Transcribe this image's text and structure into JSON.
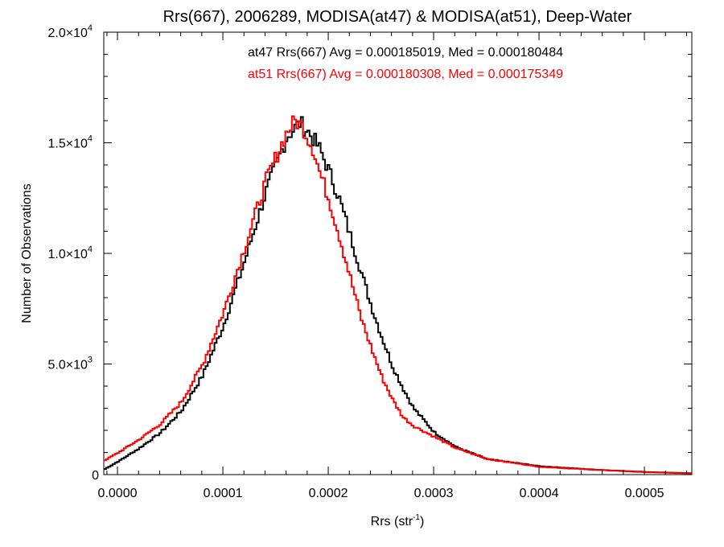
{
  "chart_data": {
    "type": "line",
    "title": "Rrs(667), 2006289, MODISA(at47) & MODISA(at51), Deep-Water",
    "xlabel": "Rrs (str",
    "xlabel_sup": "-1",
    "xlabel_end": ")",
    "ylabel": "Number of Observations",
    "xlim": [
      -1.3e-05,
      0.000545
    ],
    "ylim": [
      0,
      20000
    ],
    "x_ticks": [
      {
        "value": 0.0,
        "label": "0.0000"
      },
      {
        "value": 0.0001,
        "label": "0.0001"
      },
      {
        "value": 0.0002,
        "label": "0.0002"
      },
      {
        "value": 0.0003,
        "label": "0.0003"
      },
      {
        "value": 0.0004,
        "label": "0.0004"
      },
      {
        "value": 0.0005,
        "label": "0.0005"
      }
    ],
    "y_ticks": [
      {
        "value": 0,
        "label": "0",
        "sup": ""
      },
      {
        "value": 5000,
        "label": "5.0×10",
        "sup": "3"
      },
      {
        "value": 10000,
        "label": "1.0×10",
        "sup": "4"
      },
      {
        "value": 15000,
        "label": "1.5×10",
        "sup": "4"
      },
      {
        "value": 20000,
        "label": "2.0×10",
        "sup": "4"
      }
    ],
    "grid": false,
    "series": [
      {
        "name": "at47",
        "color": "#000000",
        "stat_label": "at47 Rrs(667) Avg = 0.000185019, Med = 0.000180484",
        "x": [
          -1.3e-05,
          0.0,
          2e-05,
          4e-05,
          6e-05,
          8e-05,
          0.0001,
          0.00012,
          0.00014,
          0.00016,
          0.000172,
          0.00018,
          0.00019,
          0.0002,
          0.00021,
          0.00022,
          0.00023,
          0.00024,
          0.00025,
          0.00026,
          0.00027,
          0.00028,
          0.0003,
          0.00032,
          0.00035,
          0.0004,
          0.00045,
          0.0005,
          0.000545
        ],
        "y": [
          250,
          600,
          1200,
          1900,
          2900,
          4500,
          6800,
          9700,
          12800,
          15300,
          15900,
          15500,
          14800,
          13700,
          12400,
          10800,
          9200,
          7600,
          6200,
          4900,
          3900,
          3000,
          1900,
          1250,
          700,
          380,
          230,
          120,
          60
        ]
      },
      {
        "name": "at51",
        "color": "#ff0000",
        "stat_label": "at51 Rrs(667) Avg = 0.000180308, Med = 0.000175349",
        "x": [
          -1.3e-05,
          0.0,
          2e-05,
          4e-05,
          6e-05,
          8e-05,
          0.0001,
          0.00012,
          0.00014,
          0.00016,
          0.000168,
          0.000175,
          0.000185,
          0.00019,
          0.0002,
          0.00021,
          0.00022,
          0.00023,
          0.00024,
          0.00025,
          0.00026,
          0.00027,
          0.00028,
          0.0003,
          0.00032,
          0.00035,
          0.0004,
          0.00045,
          0.0005,
          0.000545
        ],
        "y": [
          650,
          1000,
          1600,
          2300,
          3300,
          5000,
          7400,
          10300,
          13300,
          15500,
          16000,
          15700,
          14700,
          13800,
          12400,
          10700,
          8900,
          7100,
          5700,
          4400,
          3400,
          2600,
          2200,
          1700,
          1200,
          700,
          350,
          220,
          110,
          50
        ]
      }
    ]
  }
}
